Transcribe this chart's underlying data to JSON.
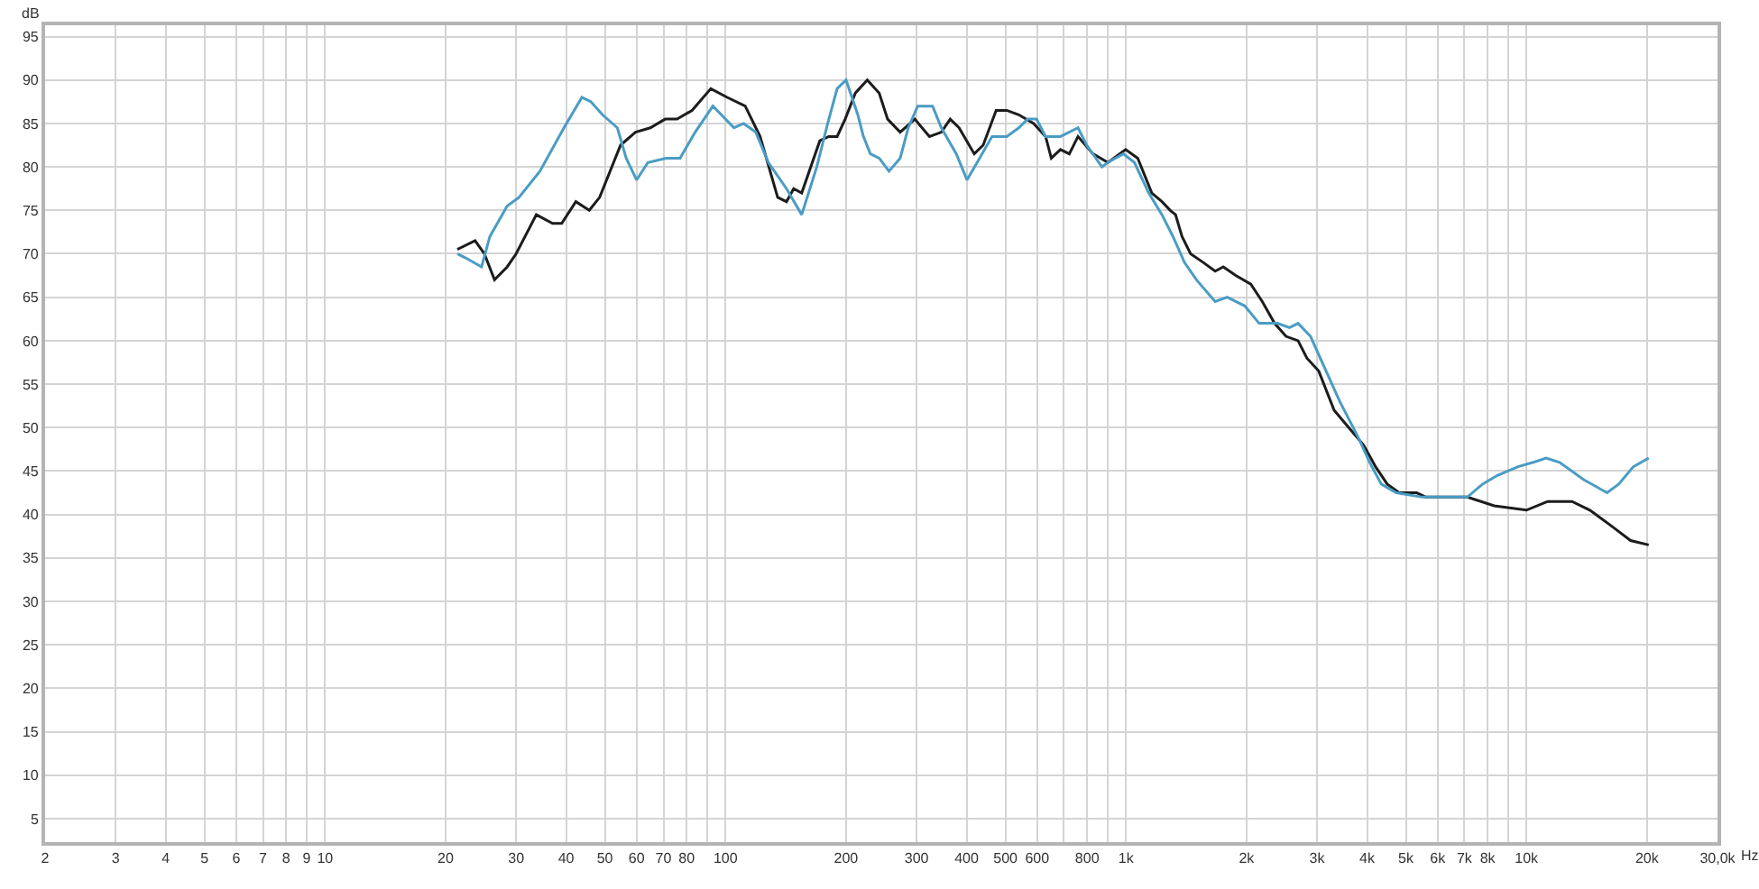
{
  "chart_data": {
    "type": "line",
    "xlabel": "Hz",
    "ylabel": "dB",
    "log": "x",
    "grid": true,
    "xlim": [
      2,
      30000
    ],
    "ylim": [
      2.3,
      96.3
    ],
    "xticks": [
      2,
      3,
      4,
      5,
      6,
      7,
      8,
      9,
      10,
      20,
      30,
      40,
      50,
      60,
      70,
      80,
      {
        "value": 90,
        "label": null
      },
      100,
      200,
      300,
      400,
      500,
      600,
      {
        "value": 700,
        "label": null
      },
      800,
      {
        "value": 900,
        "label": null
      },
      {
        "value": 1000,
        "label": "1k"
      },
      {
        "value": 2000,
        "label": "2k"
      },
      {
        "value": 3000,
        "label": "3k"
      },
      {
        "value": 4000,
        "label": "4k"
      },
      {
        "value": 5000,
        "label": "5k"
      },
      {
        "value": 6000,
        "label": "6k"
      },
      {
        "value": 7000,
        "label": "7k"
      },
      {
        "value": 8000,
        "label": "8k"
      },
      {
        "value": 9000,
        "label": null
      },
      {
        "value": 10000,
        "label": "10k"
      },
      {
        "value": 20000,
        "label": "20k"
      },
      {
        "value": 30000,
        "label": "30,0k"
      }
    ],
    "yticks": [
      5,
      10,
      15,
      20,
      25,
      30,
      35,
      40,
      45,
      50,
      55,
      60,
      65,
      70,
      75,
      80,
      85,
      90,
      95
    ],
    "series": [
      {
        "color": "#1c1c1c",
        "x": [
          21.4,
          23.7,
          25,
          26.5,
          28.5,
          30,
          33.7,
          37,
          39,
          42.3,
          45.7,
          48.5,
          54.7,
          59.6,
          64.9,
          70.7,
          75.7,
          82.5,
          91.9,
          101,
          112,
          122,
          135,
          142,
          148,
          155,
          172,
          181,
          190,
          199,
          211,
          226,
          242,
          254,
          273,
          297,
          323,
          346,
          364,
          383,
          418,
          440,
          474,
          504,
          540,
          588,
          630,
          651,
          686,
          722,
          759,
          827,
          902,
          998,
          1070,
          1160,
          1230,
          1290,
          1330,
          1380,
          1450,
          1560,
          1670,
          1750,
          1880,
          2050,
          2190,
          2350,
          2510,
          2690,
          2830,
          3030,
          3310,
          3600,
          3920,
          4200,
          4490,
          4810,
          5320,
          5610,
          6110,
          7120,
          8310,
          10000,
          11300,
          13000,
          14400,
          16500,
          18200,
          20200
        ],
        "values": [
          70.5,
          71.5,
          70,
          67,
          68.5,
          70,
          74.5,
          73.5,
          73.5,
          76,
          75,
          76.5,
          82.5,
          84,
          84.5,
          85.5,
          85.5,
          86.5,
          89,
          88,
          87,
          83.5,
          76.5,
          76,
          77.5,
          77,
          83,
          83.5,
          83.5,
          85.5,
          88.5,
          90,
          88.5,
          85.5,
          84,
          85.5,
          83.5,
          84,
          85.5,
          84.5,
          81.5,
          82.5,
          86.5,
          86.5,
          86,
          85,
          83.5,
          81,
          82,
          81.5,
          83.5,
          81.5,
          80.5,
          82,
          81,
          77,
          76,
          75,
          74.5,
          72,
          70,
          69,
          68,
          68.5,
          67.5,
          66.5,
          64.5,
          62,
          60.5,
          60,
          58,
          56.5,
          52,
          50,
          48,
          45.5,
          43.5,
          42.5,
          42.5,
          42,
          42,
          42,
          41,
          40.5,
          41.5,
          41.5,
          40.5,
          38.5,
          37,
          36.5
        ]
      },
      {
        "color": "#4a9cc4",
        "x": [
          21.4,
          22.5,
          24.6,
          25.8,
          28.5,
          30.5,
          34.4,
          39.5,
          43.8,
          46.1,
          49.3,
          53.7,
          56.5,
          60,
          64,
          71,
          77,
          84,
          93,
          105,
          111,
          119,
          128,
          142,
          155,
          169,
          180,
          190,
          200,
          214,
          221,
          230,
          242,
          256,
          273,
          286,
          302,
          329,
          346,
          377,
          401,
          425,
          463,
          504,
          540,
          568,
          598,
          630,
          686,
          759,
          798,
          871,
          900,
          985,
          1050,
          1140,
          1230,
          1310,
          1400,
          1500,
          1670,
          1790,
          1980,
          2150,
          2390,
          2560,
          2690,
          2890,
          3090,
          3420,
          3790,
          4060,
          4340,
          4730,
          5500,
          6210,
          7120,
          7770,
          8460,
          9530,
          10400,
          11200,
          12100,
          13900,
          15900,
          17000,
          18500,
          20200
        ],
        "values": [
          70,
          69.5,
          68.5,
          72,
          75.5,
          76.5,
          79.5,
          84.5,
          88,
          87.5,
          86,
          84.5,
          81,
          78.5,
          80.5,
          81,
          81,
          84,
          87,
          84.5,
          85,
          84,
          80.5,
          77.5,
          74.5,
          80,
          85,
          89,
          90,
          86,
          83.5,
          81.5,
          81,
          79.5,
          81,
          84.5,
          87,
          87,
          84.5,
          81.5,
          78.5,
          80.5,
          83.5,
          83.5,
          84.5,
          85.5,
          85.5,
          83.5,
          83.5,
          84.5,
          82.5,
          80,
          80.5,
          81.5,
          80.5,
          77,
          74.5,
          72,
          69,
          67,
          64.5,
          65,
          64,
          62,
          62,
          61.5,
          62,
          60.5,
          57.5,
          53,
          49,
          46,
          43.5,
          42.5,
          42,
          42,
          42,
          43.5,
          44.5,
          45.5,
          46,
          46.5,
          46,
          44,
          42.5,
          43.5,
          45.5,
          46.5
        ]
      }
    ]
  }
}
